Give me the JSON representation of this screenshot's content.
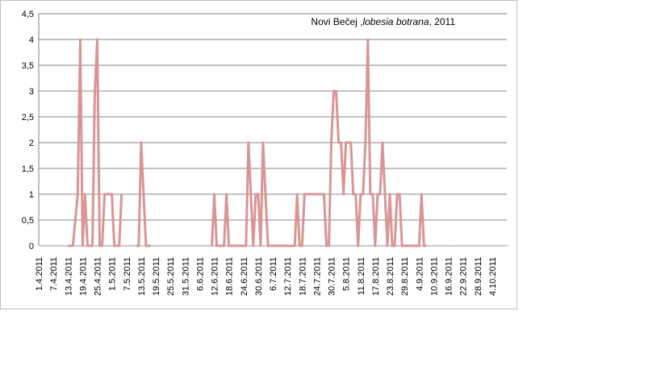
{
  "chart_data": {
    "type": "line",
    "title_parts": [
      {
        "text": "Novi Bečej ,",
        "italic": false
      },
      {
        "text": "lobesia botrana",
        "italic": true
      },
      {
        "text": ", 2011",
        "italic": false
      }
    ],
    "xlabel": "",
    "ylabel": "",
    "ylim": [
      0,
      4.5
    ],
    "y_ticks": [
      "0",
      "0,5",
      "1",
      "1,5",
      "2",
      "2,5",
      "3",
      "3,5",
      "4",
      "4,5"
    ],
    "x_tick_labels": [
      "1.4.2011",
      "7.4.2011",
      "13.4.2011",
      "19.4.2011",
      "25.4.2011",
      "1.5.2011",
      "7.5.2011",
      "13.5.2011",
      "19.5.2011",
      "25.5.2011",
      "31.5.2011",
      "6.6.2011",
      "12.6.2011",
      "18.6.2011",
      "24.6.2011",
      "30.6.2011",
      "6.7.2011",
      "12.7.2011",
      "18.7.2011",
      "24.7.2011",
      "30.7.2011",
      "5.8.2011",
      "11.8.2011",
      "17.8.2011",
      "23.8.2011",
      "29.8.2011",
      "4.9.2011",
      "10.9.2011",
      "16.9.2011",
      "22.9.2011",
      "28.9.2011",
      "4.10.2011"
    ],
    "grid": true,
    "legend": "none",
    "series_color": "#d99594",
    "grid_color": "#868686",
    "series": [
      {
        "segments": [
          [
            [
              12,
              0
            ],
            [
              13,
              0
            ],
            [
              14,
              0
            ],
            [
              15,
              0.5
            ],
            [
              16,
              1
            ],
            [
              17,
              4
            ],
            [
              18,
              0
            ],
            [
              19,
              1
            ],
            [
              20,
              0
            ],
            [
              21,
              0
            ],
            [
              22,
              0
            ],
            [
              23,
              3
            ],
            [
              24,
              4
            ],
            [
              25,
              0
            ],
            [
              26,
              0
            ],
            [
              27,
              1
            ],
            [
              28,
              1
            ],
            [
              29,
              1
            ],
            [
              30,
              1
            ],
            [
              31,
              0
            ],
            [
              32,
              0
            ],
            [
              33,
              0
            ],
            [
              34,
              1
            ]
          ],
          [
            [
              40,
              0
            ],
            [
              41,
              0
            ],
            [
              42,
              2
            ],
            [
              43,
              1
            ],
            [
              44,
              0
            ],
            [
              45,
              0
            ],
            [
              46,
              0
            ]
          ],
          [
            [
              71,
              0
            ],
            [
              72,
              1
            ],
            [
              73,
              0
            ],
            [
              74,
              0
            ],
            [
              75,
              0
            ],
            [
              76,
              0
            ],
            [
              77,
              1
            ],
            [
              78,
              0
            ],
            [
              79,
              0
            ],
            [
              80,
              0
            ],
            [
              81,
              0
            ],
            [
              82,
              0
            ],
            [
              83,
              0
            ],
            [
              84,
              0
            ],
            [
              85,
              0
            ],
            [
              86,
              2
            ],
            [
              87,
              1
            ],
            [
              88,
              0
            ],
            [
              89,
              1
            ],
            [
              90,
              1
            ],
            [
              91,
              0
            ],
            [
              92,
              2
            ],
            [
              93,
              1
            ],
            [
              94,
              0
            ],
            [
              95,
              0
            ],
            [
              96,
              0
            ],
            [
              97,
              0
            ],
            [
              98,
              0
            ],
            [
              99,
              0
            ],
            [
              100,
              0
            ],
            [
              101,
              0
            ],
            [
              102,
              0
            ],
            [
              103,
              0
            ],
            [
              104,
              0
            ],
            [
              105,
              0
            ],
            [
              106,
              1
            ],
            [
              107,
              0
            ],
            [
              108,
              0
            ],
            [
              109,
              1
            ],
            [
              110,
              1
            ],
            [
              111,
              1
            ],
            [
              112,
              1
            ],
            [
              113,
              1
            ],
            [
              114,
              1
            ],
            [
              115,
              1
            ],
            [
              116,
              1
            ],
            [
              117,
              1
            ],
            [
              118,
              0
            ],
            [
              119,
              0
            ],
            [
              120,
              2
            ],
            [
              121,
              3
            ],
            [
              122,
              3
            ],
            [
              123,
              2
            ],
            [
              124,
              2
            ],
            [
              125,
              1
            ],
            [
              126,
              2
            ],
            [
              127,
              2
            ],
            [
              128,
              2
            ],
            [
              129,
              1
            ],
            [
              130,
              1
            ],
            [
              131,
              0
            ],
            [
              132,
              1
            ],
            [
              133,
              1
            ],
            [
              134,
              2
            ],
            [
              135,
              4
            ],
            [
              136,
              1
            ],
            [
              137,
              1
            ],
            [
              138,
              0
            ],
            [
              139,
              1
            ],
            [
              140,
              1
            ],
            [
              141,
              2
            ],
            [
              142,
              1
            ],
            [
              143,
              0
            ],
            [
              144,
              1
            ],
            [
              145,
              0
            ],
            [
              146,
              0
            ],
            [
              147,
              1
            ],
            [
              148,
              1
            ],
            [
              149,
              0
            ],
            [
              150,
              0
            ],
            [
              151,
              0
            ],
            [
              152,
              0
            ],
            [
              153,
              0
            ],
            [
              154,
              0
            ],
            [
              155,
              0
            ],
            [
              156,
              0
            ],
            [
              157,
              1
            ],
            [
              158,
              0
            ],
            [
              159,
              0
            ]
          ]
        ]
      }
    ]
  }
}
